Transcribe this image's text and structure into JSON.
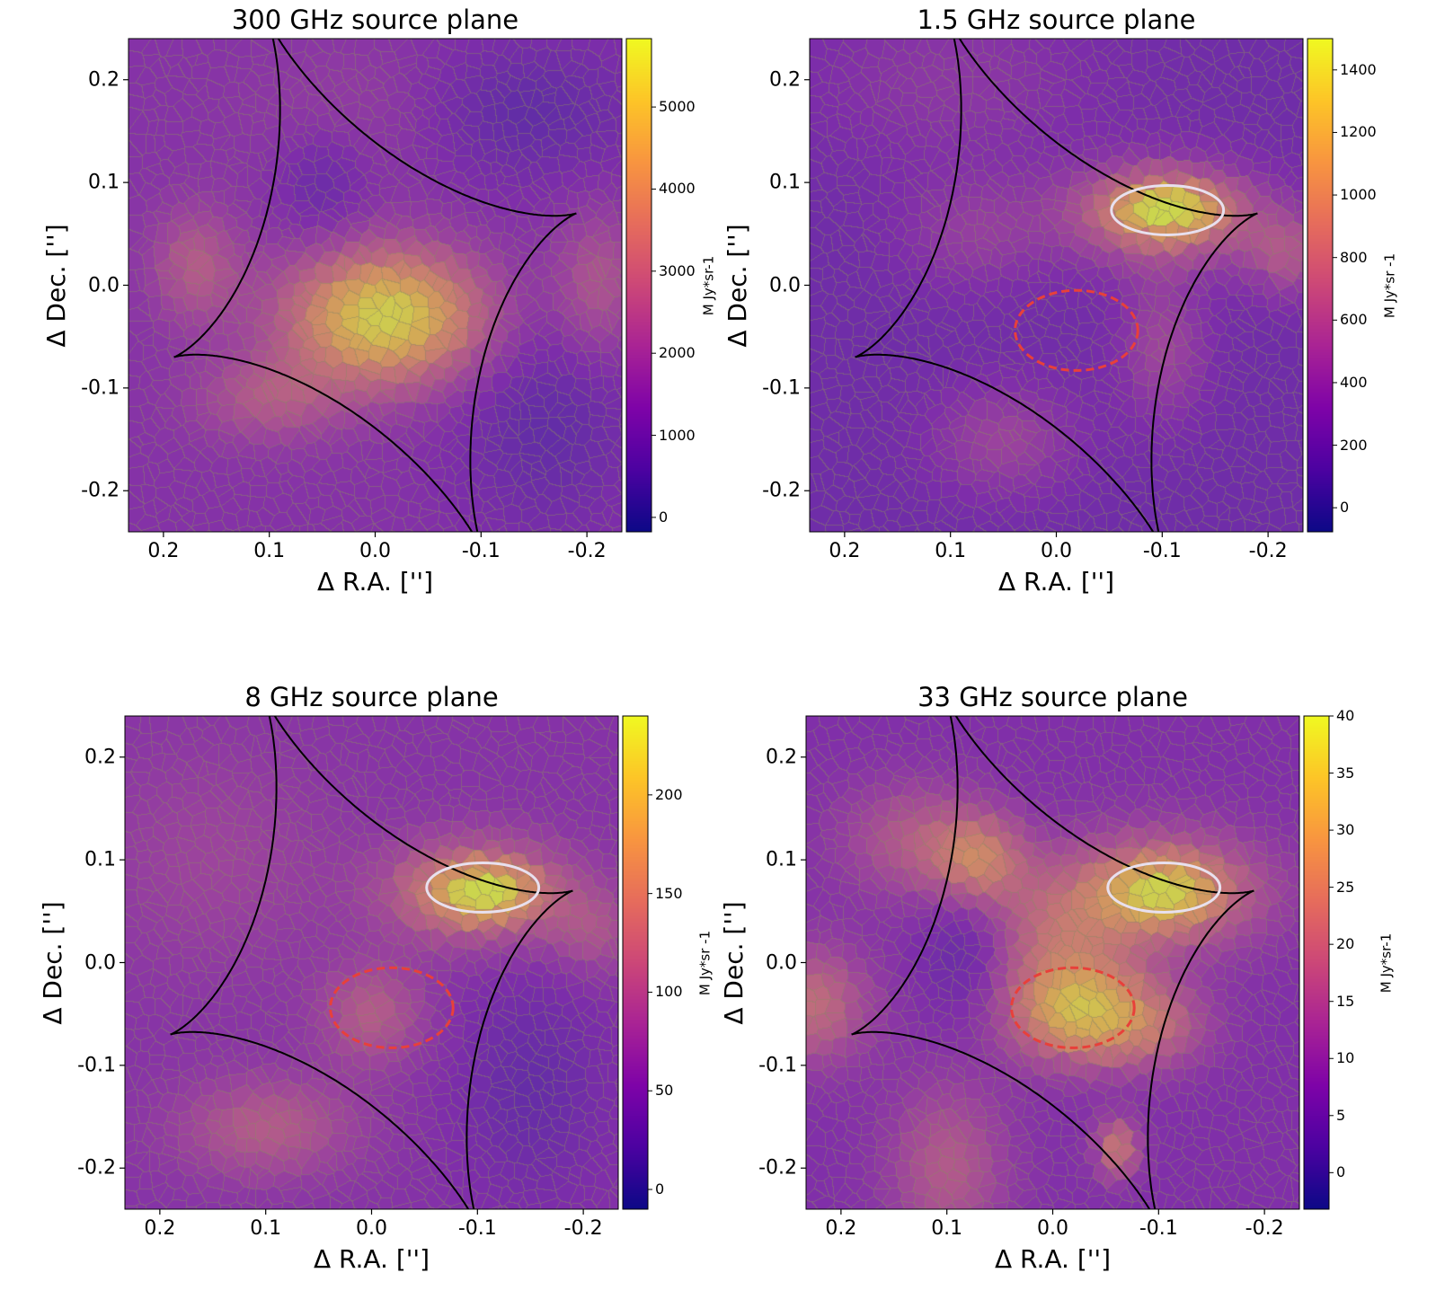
{
  "chart_data": [
    {
      "type": "heatmap",
      "title": "300 GHz source plane",
      "xlabel": "Δ R.A. ['']",
      "ylabel": "Δ Dec. ['']",
      "xlim": [
        0.233,
        -0.233
      ],
      "ylim": [
        -0.24,
        0.24
      ],
      "xticks": [
        {
          "v": 0.2,
          "label": "0.2"
        },
        {
          "v": 0.1,
          "label": "0.1"
        },
        {
          "v": 0.0,
          "label": "0.0"
        },
        {
          "v": -0.1,
          "label": "-0.1"
        },
        {
          "v": -0.2,
          "label": "-0.2"
        }
      ],
      "yticks": [
        {
          "v": 0.2,
          "label": "0.2"
        },
        {
          "v": 0.1,
          "label": "0.1"
        },
        {
          "v": 0.0,
          "label": "0.0"
        },
        {
          "v": -0.1,
          "label": "-0.1"
        },
        {
          "v": -0.2,
          "label": "-0.2"
        }
      ],
      "colorbar": {
        "label": "M Jy*sr-1",
        "range": [
          -176,
          5833
        ],
        "ticks": [
          "0",
          "1000",
          "2000",
          "3000",
          "4000",
          "5000"
        ],
        "tick_values": [
          0,
          1000,
          2000,
          3000,
          4000,
          5000
        ],
        "colormap": "plasma"
      },
      "background_value": 1500,
      "sources": [
        {
          "ra": -0.01,
          "dec": -0.03,
          "sigma_ra": 0.065,
          "sigma_dec": 0.045,
          "peak": 4200
        },
        {
          "ra": 0.17,
          "dec": 0.02,
          "sigma_ra": 0.03,
          "sigma_dec": 0.04,
          "peak": 1300
        },
        {
          "ra": 0.1,
          "dec": -0.11,
          "sigma_ra": 0.05,
          "sigma_dec": 0.03,
          "peak": 1200
        },
        {
          "ra": -0.21,
          "dec": 0.0,
          "sigma_ra": 0.03,
          "sigma_dec": 0.05,
          "peak": 1200
        },
        {
          "ra": 0.0,
          "dec": 0.17,
          "sigma_ra": 0.08,
          "sigma_dec": 0.05,
          "peak": 500
        },
        {
          "ra": -0.13,
          "dec": 0.17,
          "sigma_ra": 0.08,
          "sigma_dec": 0.05,
          "peak": -900
        },
        {
          "ra": -0.16,
          "dec": -0.13,
          "sigma_ra": 0.06,
          "sigma_dec": 0.08,
          "peak": -800
        },
        {
          "ra": 0.05,
          "dec": 0.1,
          "sigma_ra": 0.03,
          "sigma_dec": 0.04,
          "peak": -700
        }
      ],
      "caustic": {
        "center": [
          0,
          0
        ],
        "cusp_a": [
          -0.19,
          0.07
        ],
        "cusp_b": [
          0.102,
          0.26
        ],
        "color": "#000000"
      },
      "ellipses": []
    },
    {
      "type": "heatmap",
      "title": "1.5 GHz source plane",
      "xlabel": "Δ R.A. ['']",
      "ylabel": "Δ Dec. ['']",
      "xlim": [
        0.233,
        -0.233
      ],
      "ylim": [
        -0.24,
        0.24
      ],
      "xticks": [
        {
          "v": 0.2,
          "label": "0.2"
        },
        {
          "v": 0.1,
          "label": "0.1"
        },
        {
          "v": 0.0,
          "label": "0.0"
        },
        {
          "v": -0.1,
          "label": "-0.1"
        },
        {
          "v": -0.2,
          "label": "-0.2"
        }
      ],
      "yticks": [
        {
          "v": 0.2,
          "label": "0.2"
        },
        {
          "v": 0.1,
          "label": "0.1"
        },
        {
          "v": 0.0,
          "label": "0.0"
        },
        {
          "v": -0.1,
          "label": "-0.1"
        },
        {
          "v": -0.2,
          "label": "-0.2"
        }
      ],
      "colorbar": {
        "label": "M Jy*sr -1",
        "range": [
          -77,
          1500
        ],
        "ticks": [
          "0",
          "200",
          "400",
          "600",
          "800",
          "1000",
          "1200",
          "1400"
        ],
        "tick_values": [
          0,
          200,
          400,
          600,
          800,
          1000,
          1200,
          1400
        ],
        "colormap": "plasma"
      },
      "background_value": 230,
      "sources": [
        {
          "ra": -0.105,
          "dec": 0.075,
          "sigma_ra": 0.035,
          "sigma_dec": 0.018,
          "peak": 700
        },
        {
          "ra": -0.1,
          "dec": 0.07,
          "sigma_ra": 0.065,
          "sigma_dec": 0.035,
          "peak": 700
        },
        {
          "ra": -0.22,
          "dec": 0.03,
          "sigma_ra": 0.03,
          "sigma_dec": 0.03,
          "peak": 400
        },
        {
          "ra": -0.1,
          "dec": -0.06,
          "sigma_ra": 0.03,
          "sigma_dec": 0.05,
          "peak": 300
        },
        {
          "ra": 0.05,
          "dec": -0.15,
          "sigma_ra": 0.05,
          "sigma_dec": 0.04,
          "peak": 280
        },
        {
          "ra": 0.08,
          "dec": 0.05,
          "sigma_ra": 0.05,
          "sigma_dec": 0.04,
          "peak": 220
        },
        {
          "ra": 0.1,
          "dec": 0.2,
          "sigma_ra": 0.1,
          "sigma_dec": 0.06,
          "peak": 180
        }
      ],
      "caustic": {
        "center": [
          0,
          0
        ],
        "cusp_a": [
          -0.19,
          0.07
        ],
        "cusp_b": [
          0.102,
          0.26
        ],
        "color": "#000000"
      },
      "ellipses": [
        {
          "ra": -0.105,
          "dec": 0.073,
          "a": 0.053,
          "b": 0.024,
          "color": "#e8e0ee",
          "dashed": false
        },
        {
          "ra": -0.019,
          "dec": -0.044,
          "a": 0.058,
          "b": 0.039,
          "color": "#e8403a",
          "dashed": true
        }
      ]
    },
    {
      "type": "heatmap",
      "title": "8 GHz source plane",
      "xlabel": "Δ R.A. ['']",
      "ylabel": "Δ Dec. ['']",
      "xlim": [
        0.233,
        -0.233
      ],
      "ylim": [
        -0.24,
        0.24
      ],
      "xticks": [
        {
          "v": 0.2,
          "label": "0.2"
        },
        {
          "v": 0.1,
          "label": "0.1"
        },
        {
          "v": 0.0,
          "label": "0.0"
        },
        {
          "v": -0.1,
          "label": "-0.1"
        },
        {
          "v": -0.2,
          "label": "-0.2"
        }
      ],
      "yticks": [
        {
          "v": 0.2,
          "label": "0.2"
        },
        {
          "v": 0.1,
          "label": "0.1"
        },
        {
          "v": 0.0,
          "label": "0.0"
        },
        {
          "v": -0.1,
          "label": "-0.1"
        },
        {
          "v": -0.2,
          "label": "-0.2"
        }
      ],
      "colorbar": {
        "label": "M Jy*sr -1",
        "range": [
          -10,
          240
        ],
        "ticks": [
          "0",
          "50",
          "100",
          "150",
          "200"
        ],
        "tick_values": [
          0,
          50,
          100,
          150,
          200
        ],
        "colormap": "plasma"
      },
      "background_value": 60,
      "sources": [
        {
          "ra": -0.105,
          "dec": 0.07,
          "sigma_ra": 0.032,
          "sigma_dec": 0.018,
          "peak": 100
        },
        {
          "ra": -0.1,
          "dec": 0.07,
          "sigma_ra": 0.06,
          "sigma_dec": 0.035,
          "peak": 100
        },
        {
          "ra": 0.0,
          "dec": -0.05,
          "sigma_ra": 0.035,
          "sigma_dec": 0.035,
          "peak": 55
        },
        {
          "ra": 0.1,
          "dec": -0.16,
          "sigma_ra": 0.06,
          "sigma_dec": 0.035,
          "peak": 55
        },
        {
          "ra": -0.21,
          "dec": 0.03,
          "sigma_ra": 0.03,
          "sigma_dec": 0.03,
          "peak": 40
        },
        {
          "ra": 0.15,
          "dec": 0.1,
          "sigma_ra": 0.08,
          "sigma_dec": 0.08,
          "peak": 25
        },
        {
          "ra": -0.15,
          "dec": -0.12,
          "sigma_ra": 0.05,
          "sigma_dec": 0.08,
          "peak": -30
        }
      ],
      "caustic": {
        "center": [
          0,
          0
        ],
        "cusp_a": [
          -0.19,
          0.07
        ],
        "cusp_b": [
          0.102,
          0.26
        ],
        "color": "#000000"
      },
      "ellipses": [
        {
          "ra": -0.105,
          "dec": 0.073,
          "a": 0.053,
          "b": 0.024,
          "color": "#e8e0ee",
          "dashed": false
        },
        {
          "ra": -0.019,
          "dec": -0.044,
          "a": 0.058,
          "b": 0.039,
          "color": "#e8403a",
          "dashed": true
        }
      ]
    },
    {
      "type": "heatmap",
      "title": "33 GHz source plane",
      "xlabel": "Δ R.A. ['']",
      "ylabel": "Δ Dec. ['']",
      "xlim": [
        0.233,
        -0.233
      ],
      "ylim": [
        -0.24,
        0.24
      ],
      "xticks": [
        {
          "v": 0.2,
          "label": "0.2"
        },
        {
          "v": 0.1,
          "label": "0.1"
        },
        {
          "v": 0.0,
          "label": "0.0"
        },
        {
          "v": -0.1,
          "label": "-0.1"
        },
        {
          "v": -0.2,
          "label": "-0.2"
        }
      ],
      "yticks": [
        {
          "v": 0.2,
          "label": "0.2"
        },
        {
          "v": 0.1,
          "label": "0.1"
        },
        {
          "v": 0.0,
          "label": "0.0"
        },
        {
          "v": -0.1,
          "label": "-0.1"
        },
        {
          "v": -0.2,
          "label": "-0.2"
        }
      ],
      "colorbar": {
        "label": "M Jy*sr-1",
        "range": [
          -3.2,
          40
        ],
        "ticks": [
          "0",
          "5",
          "10",
          "15",
          "20",
          "25",
          "30",
          "35",
          "40"
        ],
        "tick_values": [
          0,
          5,
          10,
          15,
          20,
          25,
          30,
          35,
          40
        ],
        "colormap": "plasma"
      },
      "background_value": 8,
      "sources": [
        {
          "ra": -0.105,
          "dec": 0.07,
          "sigma_ra": 0.035,
          "sigma_dec": 0.022,
          "peak": 14
        },
        {
          "ra": -0.1,
          "dec": 0.07,
          "sigma_ra": 0.07,
          "sigma_dec": 0.04,
          "peak": 18
        },
        {
          "ra": -0.02,
          "dec": -0.045,
          "sigma_ra": 0.045,
          "sigma_dec": 0.035,
          "peak": 25
        },
        {
          "ra": 0.07,
          "dec": 0.1,
          "sigma_ra": 0.03,
          "sigma_dec": 0.03,
          "peak": 16
        },
        {
          "ra": 0.23,
          "dec": -0.04,
          "sigma_ra": 0.04,
          "sigma_dec": 0.04,
          "peak": 14
        },
        {
          "ra": 0.13,
          "dec": 0.12,
          "sigma_ra": 0.05,
          "sigma_dec": 0.04,
          "peak": 10
        },
        {
          "ra": 0.1,
          "dec": -0.2,
          "sigma_ra": 0.04,
          "sigma_dec": 0.06,
          "peak": 10
        },
        {
          "ra": -0.06,
          "dec": -0.18,
          "sigma_ra": 0.015,
          "sigma_dec": 0.02,
          "peak": 16
        },
        {
          "ra": -0.09,
          "dec": -0.06,
          "sigma_ra": 0.04,
          "sigma_dec": 0.03,
          "peak": 12
        },
        {
          "ra": 0.0,
          "dec": 0.03,
          "sigma_ra": 0.05,
          "sigma_dec": 0.04,
          "peak": 10
        },
        {
          "ra": 0.08,
          "dec": 0.02,
          "sigma_ra": 0.03,
          "sigma_dec": 0.05,
          "peak": -6
        }
      ],
      "caustic": {
        "center": [
          0,
          0
        ],
        "cusp_a": [
          -0.19,
          0.07
        ],
        "cusp_b": [
          0.102,
          0.26
        ],
        "color": "#000000"
      },
      "ellipses": [
        {
          "ra": -0.105,
          "dec": 0.073,
          "a": 0.053,
          "b": 0.024,
          "color": "#e8e0ee",
          "dashed": false
        },
        {
          "ra": -0.019,
          "dec": -0.044,
          "a": 0.058,
          "b": 0.039,
          "color": "#e8403a",
          "dashed": true
        }
      ]
    }
  ]
}
